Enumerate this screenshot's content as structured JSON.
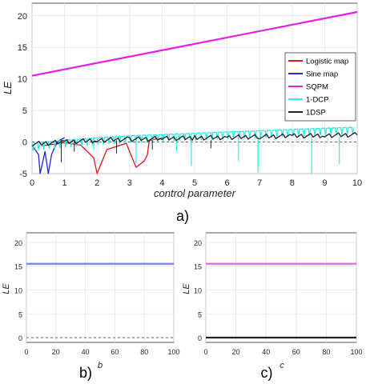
{
  "chart_data": [
    {
      "id": "a",
      "type": "line",
      "panel_label": "a)",
      "xlabel": "control parameter",
      "ylabel": "LE",
      "xlim": [
        0,
        10
      ],
      "ylim": [
        -5,
        22
      ],
      "xticks": [
        "0",
        "1",
        "2",
        "3",
        "4",
        "5",
        "6",
        "7",
        "8",
        "9",
        "10"
      ],
      "yticks": [
        "-5",
        "0",
        "5",
        "10",
        "15",
        "20"
      ],
      "grid": true,
      "legend_position": "right",
      "reference_line": 0,
      "series": [
        {
          "name": "Logistic map",
          "color": "#e8141c",
          "x": [
            0.3,
            1.0,
            1.5,
            1.9,
            2.0,
            2.3,
            2.9,
            3.0,
            3.2,
            3.45,
            3.55,
            3.6,
            3.8,
            3.9,
            4.0
          ],
          "y": [
            -0.6,
            -0.1,
            -0.5,
            -2.5,
            -5,
            -1.2,
            -0.2,
            -1.5,
            -4,
            -3,
            -2,
            0.2,
            0.5,
            0.4,
            0.69
          ]
        },
        {
          "name": "Sine map",
          "color": "#1a28d6",
          "x": [
            0.0,
            0.2,
            0.25,
            0.4,
            0.5,
            0.6,
            0.7,
            0.75,
            0.8,
            0.85,
            0.9,
            0.95,
            1.0
          ],
          "y": [
            -0.5,
            -2,
            -5,
            -1.5,
            -5,
            -2,
            -0.8,
            -0.3,
            0.1,
            0.3,
            0.4,
            0.55,
            0.69
          ]
        },
        {
          "name": "SQPM",
          "color": "#e81ce8",
          "x": [
            0,
            10
          ],
          "y": [
            10.5,
            20.6
          ]
        },
        {
          "name": "1-DCP",
          "color": "#34e8e8",
          "x": [
            0,
            1,
            2,
            3,
            4,
            5,
            6,
            7,
            8,
            9,
            10
          ],
          "y": [
            -0.2,
            0.3,
            0.7,
            1.0,
            1.2,
            1.4,
            1.6,
            1.8,
            2.0,
            2.2,
            2.35
          ]
        },
        {
          "name": "1DSP",
          "color": "#222222",
          "x": [
            0,
            1,
            2,
            3,
            4,
            5,
            6,
            7,
            8,
            9,
            10
          ],
          "y": [
            -0.3,
            0.0,
            0.3,
            0.45,
            0.55,
            0.65,
            0.75,
            0.85,
            0.95,
            1.05,
            1.15
          ]
        }
      ]
    },
    {
      "id": "b",
      "type": "line",
      "panel_label": "b)",
      "xlabel": "b",
      "ylabel": "LE",
      "xlim": [
        0,
        100
      ],
      "ylim": [
        -1,
        22
      ],
      "xticks": [
        "0",
        "20",
        "40",
        "60",
        "80",
        "100"
      ],
      "yticks": [
        "0",
        "5",
        "10",
        "15",
        "20"
      ],
      "grid": true,
      "reference_line": 0,
      "series": [
        {
          "color": "#6f7cf0",
          "x": [
            0,
            100
          ],
          "y": [
            15.5,
            15.5
          ]
        }
      ]
    },
    {
      "id": "c",
      "type": "line",
      "panel_label": "c)",
      "xlabel": "c",
      "ylabel": "LE",
      "xlim": [
        0,
        100
      ],
      "ylim": [
        -1,
        22
      ],
      "xticks": [
        "0",
        "20",
        "40",
        "60",
        "80",
        "100"
      ],
      "yticks": [
        "0",
        "5",
        "10",
        "15",
        "20"
      ],
      "grid": true,
      "series": [
        {
          "color": "#e85ce8",
          "x": [
            0,
            100
          ],
          "y": [
            15.5,
            15.5
          ]
        },
        {
          "color": "#222222",
          "x": [
            0,
            100
          ],
          "y": [
            0,
            0
          ]
        }
      ]
    }
  ]
}
